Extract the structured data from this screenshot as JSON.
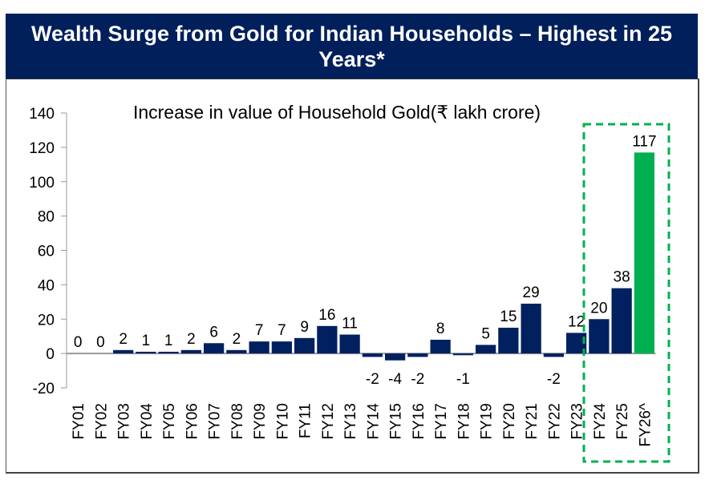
{
  "header": {
    "title": "Wealth Surge from Gold for Indian Households – Highest in 25 Years*"
  },
  "colors": {
    "header_bg": "#001f5b",
    "bar": "#002060",
    "highlight_bar": "#00b050",
    "highlight_box": "#00b050"
  },
  "chart_data": {
    "type": "bar",
    "title": "Increase in value of Household Gold(₹ lakh crore)",
    "xlabel": "",
    "ylabel": "",
    "ylim": [
      -20,
      140
    ],
    "yticks": [
      140,
      120,
      100,
      80,
      60,
      40,
      20,
      0,
      -20
    ],
    "categories": [
      "FY01",
      "FY02",
      "FY03",
      "FY04",
      "FY05",
      "FY06",
      "FY07",
      "FY08",
      "FY09",
      "FY10",
      "FY11",
      "FY12",
      "FY13",
      "FY14",
      "FY15",
      "FY16",
      "FY17",
      "FY18",
      "FY19",
      "FY20",
      "FY21",
      "FY22",
      "FY23",
      "FY24",
      "FY25",
      "FY26^"
    ],
    "values": [
      0,
      0,
      2,
      1,
      1,
      2,
      6,
      2,
      7,
      7,
      9,
      16,
      11,
      -2,
      -4,
      -2,
      8,
      -1,
      5,
      15,
      29,
      -2,
      12,
      20,
      38,
      117
    ],
    "highlighted": [
      "FY24",
      "FY25",
      "FY26^"
    ],
    "highlight_color_category": "FY26^",
    "grid": false,
    "legend": "none"
  }
}
